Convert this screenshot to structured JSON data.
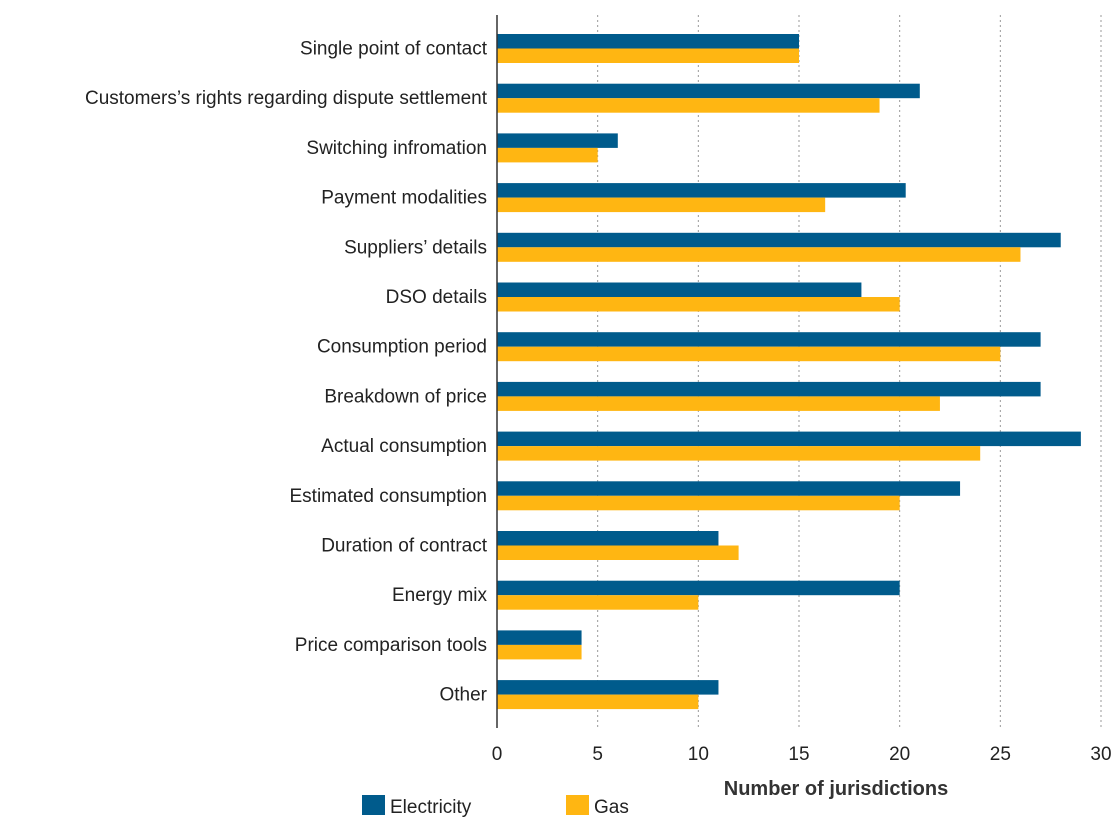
{
  "chart_data": {
    "type": "bar",
    "orientation": "horizontal",
    "categories": [
      "Single point of contact",
      "Customers’s rights regarding dispute settlement",
      "Switching infromation",
      "Payment modalities",
      "Suppliers’ details",
      "DSO details",
      "Consumption period",
      "Breakdown of price",
      "Actual consumption",
      "Estimated consumption",
      "Duration of contract",
      "Energy mix",
      "Price comparison tools",
      "Other"
    ],
    "series": [
      {
        "name": "Electricity",
        "color": "#005b8c",
        "values": [
          15,
          21,
          6,
          20.3,
          28,
          18.1,
          27,
          27,
          29,
          23,
          11,
          20,
          4.2,
          11
        ]
      },
      {
        "name": "Gas",
        "color": "#ffb612",
        "values": [
          15,
          19,
          5,
          16.3,
          26,
          20,
          25,
          22,
          24,
          20,
          12,
          10,
          4.2,
          10
        ]
      }
    ],
    "title": "",
    "xlabel": "Number of jurisdictions",
    "ylabel": "",
    "xlim": [
      0,
      30
    ],
    "xticks": [
      "0",
      "5",
      "10",
      "15",
      "20",
      "25",
      "30"
    ],
    "grid": "vertical dotted",
    "legend": "bottom-left"
  }
}
